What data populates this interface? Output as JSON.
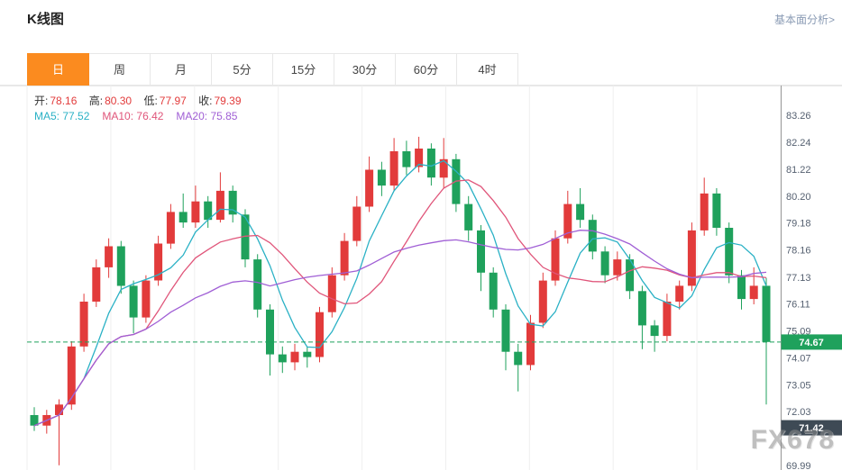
{
  "header": {
    "title": "K线图",
    "analysis_link": "基本面分析>"
  },
  "tabs": {
    "items": [
      "日",
      "周",
      "月",
      "5分",
      "15分",
      "30分",
      "60分",
      "4时"
    ],
    "selected_index": 0,
    "selected_color": "#fb8b1f"
  },
  "legend": {
    "ohlc": [
      {
        "label": "开:",
        "value": "78.16"
      },
      {
        "label": "高:",
        "value": "80.30"
      },
      {
        "label": "低:",
        "value": "77.97"
      },
      {
        "label": "收:",
        "value": "79.39"
      }
    ]
  },
  "watermark": "FX678",
  "chart_data": {
    "type": "candlestick",
    "title": "K线图 (日K)",
    "ylim": [
      69.82,
      84.39
    ],
    "y_ticks": [
      "83.26",
      "82.24",
      "81.22",
      "80.20",
      "79.18",
      "78.16",
      "77.13",
      "76.11",
      "75.09",
      "74.07",
      "73.05",
      "72.03",
      "69.99"
    ],
    "up_color": "#e23b3b",
    "down_color": "#1fa15c",
    "grid_color": "#efefef",
    "price_line": {
      "value": 74.67,
      "label": "74.67",
      "color": "#1fa15c"
    },
    "cursor_badge": {
      "value": 71.42,
      "label": "71.42",
      "color": "#3e4a55"
    },
    "ma": [
      {
        "name": "MA5",
        "period": 5,
        "color": "#2ab1c5",
        "value": "77.52"
      },
      {
        "name": "MA10",
        "period": 10,
        "color": "#e0557a",
        "value": "76.42"
      },
      {
        "name": "MA20",
        "period": 20,
        "color": "#a05fd5",
        "value": "75.85"
      }
    ],
    "candles": [
      [
        71.9,
        72.2,
        71.3,
        71.5
      ],
      [
        71.5,
        72.1,
        71.2,
        71.9
      ],
      [
        71.9,
        72.5,
        70.0,
        72.3
      ],
      [
        72.3,
        74.7,
        72.1,
        74.5
      ],
      [
        74.5,
        76.5,
        74.3,
        76.2
      ],
      [
        76.2,
        77.8,
        76.0,
        77.5
      ],
      [
        77.5,
        78.6,
        77.1,
        78.3
      ],
      [
        78.3,
        78.5,
        76.5,
        76.8
      ],
      [
        76.8,
        77.0,
        75.0,
        75.6
      ],
      [
        75.6,
        77.2,
        75.4,
        77.0
      ],
      [
        77.0,
        78.7,
        76.8,
        78.4
      ],
      [
        78.4,
        79.9,
        78.2,
        79.6
      ],
      [
        79.6,
        80.3,
        79.0,
        79.2
      ],
      [
        79.2,
        80.6,
        79.0,
        80.0
      ],
      [
        80.0,
        80.2,
        79.0,
        79.3
      ],
      [
        79.3,
        81.1,
        79.2,
        80.4
      ],
      [
        80.4,
        80.6,
        79.2,
        79.5
      ],
      [
        79.5,
        79.7,
        77.5,
        77.8
      ],
      [
        77.8,
        78.0,
        75.6,
        75.9
      ],
      [
        75.9,
        76.1,
        73.4,
        74.2
      ],
      [
        74.2,
        74.5,
        73.5,
        73.9
      ],
      [
        73.9,
        74.6,
        73.6,
        74.3
      ],
      [
        74.3,
        74.5,
        73.7,
        74.1
      ],
      [
        74.1,
        76.0,
        73.9,
        75.8
      ],
      [
        75.8,
        77.5,
        75.6,
        77.2
      ],
      [
        77.2,
        78.8,
        77.0,
        78.5
      ],
      [
        78.5,
        80.2,
        78.3,
        79.8
      ],
      [
        79.8,
        81.7,
        79.6,
        81.2
      ],
      [
        81.2,
        81.5,
        80.2,
        80.6
      ],
      [
        80.6,
        82.4,
        80.4,
        81.9
      ],
      [
        81.9,
        82.3,
        81.0,
        81.3
      ],
      [
        81.3,
        82.45,
        81.1,
        82.0
      ],
      [
        82.0,
        82.2,
        80.6,
        80.9
      ],
      [
        80.9,
        82.4,
        80.5,
        81.6
      ],
      [
        81.6,
        81.8,
        79.6,
        79.9
      ],
      [
        79.9,
        80.2,
        78.5,
        78.9
      ],
      [
        78.9,
        79.1,
        76.6,
        77.3
      ],
      [
        77.3,
        77.5,
        75.6,
        75.9
      ],
      [
        75.9,
        76.1,
        73.6,
        74.3
      ],
      [
        74.3,
        74.6,
        72.8,
        73.8
      ],
      [
        73.8,
        75.7,
        73.6,
        75.4
      ],
      [
        75.4,
        77.3,
        75.2,
        77.0
      ],
      [
        77.0,
        78.9,
        76.8,
        78.6
      ],
      [
        78.6,
        80.4,
        78.4,
        79.9
      ],
      [
        79.9,
        80.5,
        79.0,
        79.3
      ],
      [
        79.3,
        79.5,
        77.8,
        78.1
      ],
      [
        78.1,
        78.3,
        76.9,
        77.2
      ],
      [
        77.2,
        78.1,
        77.0,
        77.8
      ],
      [
        77.8,
        78.0,
        76.3,
        76.6
      ],
      [
        76.6,
        76.8,
        74.4,
        75.3
      ],
      [
        75.3,
        75.5,
        74.3,
        74.9
      ],
      [
        74.9,
        76.5,
        74.7,
        76.2
      ],
      [
        76.2,
        77.0,
        75.9,
        76.8
      ],
      [
        76.8,
        79.2,
        76.6,
        78.9
      ],
      [
        78.9,
        80.9,
        78.7,
        80.3
      ],
      [
        80.3,
        80.5,
        78.7,
        79.0
      ],
      [
        79.0,
        79.2,
        76.9,
        77.2
      ],
      [
        77.2,
        77.4,
        75.9,
        76.3
      ],
      [
        76.3,
        77.5,
        76.1,
        76.8
      ],
      [
        76.8,
        77.1,
        72.3,
        74.67
      ]
    ]
  }
}
